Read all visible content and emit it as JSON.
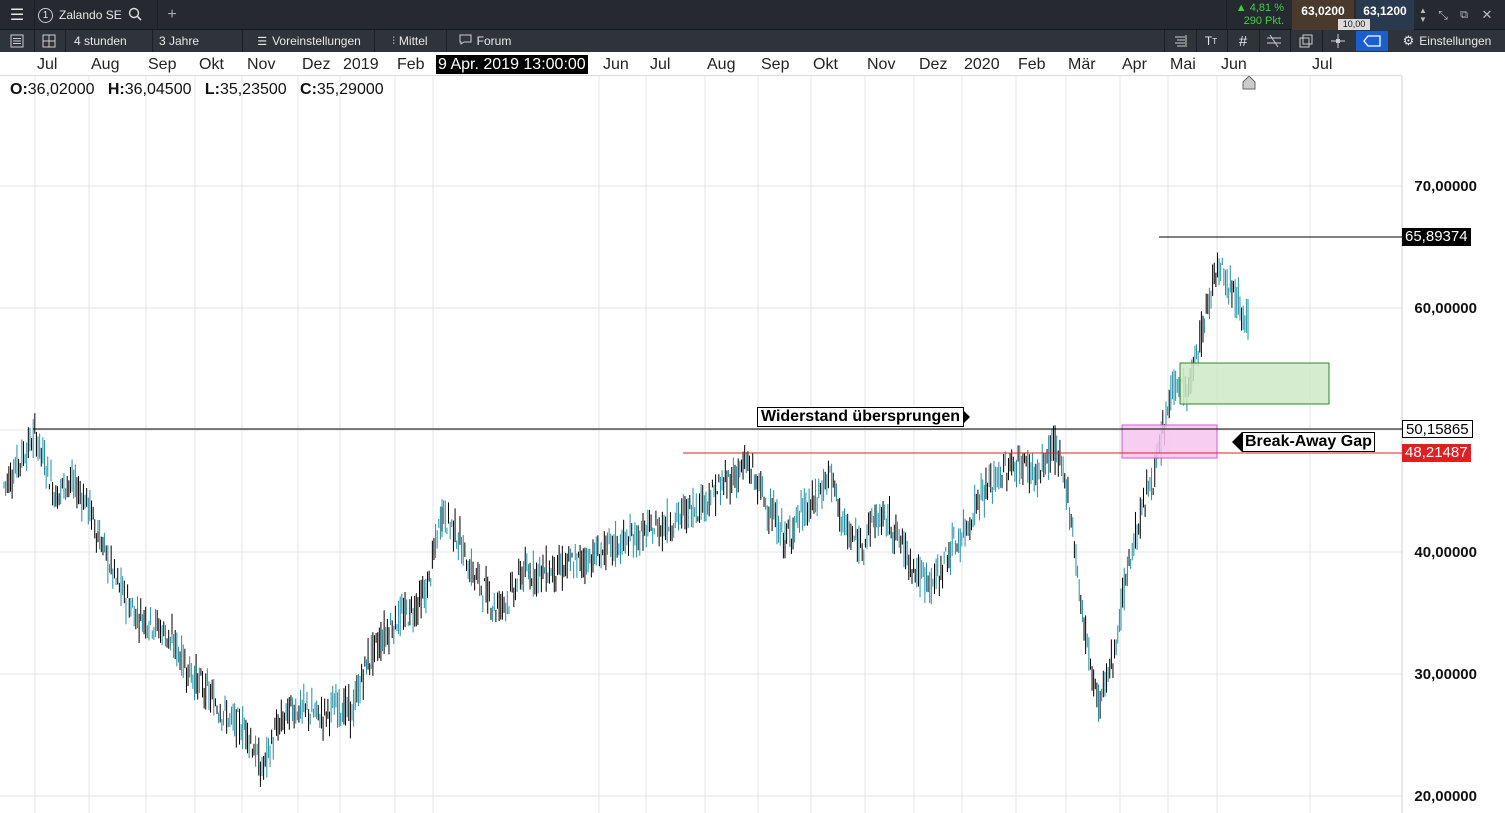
{
  "topbar": {
    "tab_number": "1",
    "instrument": "Zalando SE",
    "change_pct": "4,81 %",
    "change_pts": "290 Pkt.",
    "bid": "63,0200",
    "ask": "63,1200",
    "spread": "10,00"
  },
  "toolbar": {
    "interval": "4 stunden",
    "range": "3 Jahre",
    "presets": "Voreinstellungen",
    "indicator": "Mittel",
    "forum": "Forum",
    "settings": "Einstellungen"
  },
  "xaxis": {
    "months": [
      "Jul",
      "Aug",
      "Sep",
      "Okt",
      "Nov",
      "Dez",
      "2019",
      "Feb",
      "Jun",
      "Jul",
      "Aug",
      "Sep",
      "Okt",
      "Nov",
      "Dez",
      "2020",
      "Feb",
      "Mär",
      "Apr",
      "Mai",
      "Jun",
      "Jul"
    ],
    "cursor_label": "9 Apr. 2019 13:00:00"
  },
  "ohlc": {
    "o_label": "O:",
    "o": "36,02000",
    "h_label": "H:",
    "h": "36,04500",
    "l_label": "L:",
    "l": "35,23500",
    "c_label": "C:",
    "c": "35,29000"
  },
  "yaxis": {
    "ticks": [
      "70,00000",
      "60,00000",
      "40,00000",
      "30,00000",
      "20,00000"
    ]
  },
  "levels": {
    "high": "65,89374",
    "resistance": "50,15865",
    "gap": "48,21487"
  },
  "annotations": {
    "resistance_label": "Widerstand übersprungen",
    "gap_label": "Break-Away Gap"
  },
  "colors": {
    "up": "#1f8fa6",
    "down": "#000000",
    "gap_line": "#e02020",
    "high_tag": "#000000",
    "gap_tag": "#e02020",
    "green_box": "#cfe9c6",
    "pink_box": "#f7c4f0",
    "change": "#3dd13d"
  },
  "chart_data": {
    "type": "candlestick",
    "ylim": [
      20,
      75
    ],
    "y_unit": "EUR",
    "series": [
      {
        "values_weekly_close": [
          45.5,
          46.8,
          48.2,
          49.6,
          47.2,
          44.5,
          45.8,
          45.2,
          44.0,
          41.5,
          37.5,
          35.0,
          34.2,
          32.8,
          30.5,
          29.0,
          27.5,
          26.0,
          25.5,
          22.0,
          25.5,
          27.2,
          27.0,
          26.5,
          27.5,
          26.8,
          31.0,
          33.0,
          34.5,
          35.2,
          36.8,
          43.2,
          41.8,
          38.8,
          37.2,
          35.5,
          36.2,
          38.2,
          38.6,
          39.8,
          41.2,
          42.5,
          44.5,
          47.2,
          41.0,
          43.0,
          44.0,
          46.5,
          41.8,
          40.5,
          42.8,
          42.5,
          40.2,
          38.0,
          37.5,
          40.0,
          41.5,
          44.5,
          45.8,
          47.0,
          47.2,
          46.2,
          48.8,
          44.5,
          34.0,
          27.5,
          31.5,
          39.0,
          44.0,
          47.5,
          54.0,
          53.0,
          58.5,
          64.0,
          61.5
        ]
      }
    ]
  }
}
